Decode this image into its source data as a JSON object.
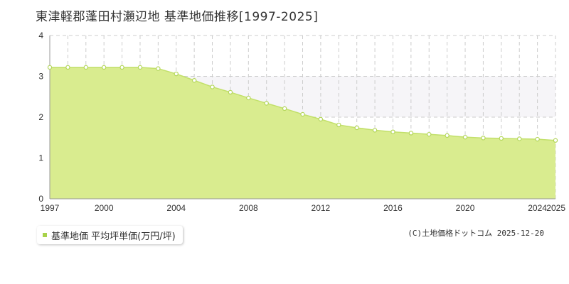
{
  "title": "東津軽郡蓬田村瀬辺地 基準地価推移[1997-2025]",
  "colors": {
    "area_fill": "#d9ec8f",
    "line": "#c2e06a",
    "point_fill": "#ffffff",
    "point_stroke": "#b3d65a",
    "grid": "#cccccc",
    "band": "#f6f5f8",
    "legend_marker": "#a8d24a"
  },
  "legend": {
    "label": "基準地価 平均坪単価(万円/坪)"
  },
  "copyright": "(C)土地価格ドットコム 2025-12-20",
  "chart_data": {
    "type": "area",
    "title": "東津軽郡蓬田村瀬辺地 基準地価推移[1997-2025]",
    "xlabel": "",
    "ylabel": "",
    "xlim": [
      1997,
      2025
    ],
    "ylim": [
      0,
      4
    ],
    "x_ticks": [
      "1997",
      "2000",
      "2004",
      "2008",
      "2012",
      "2016",
      "2020",
      "2024",
      "2025"
    ],
    "x_tick_values": [
      1997,
      2000,
      2004,
      2008,
      2012,
      2016,
      2020,
      2024,
      2025
    ],
    "y_ticks": [
      "0",
      "1",
      "2",
      "3",
      "4"
    ],
    "y_tick_values": [
      0,
      1,
      2,
      3,
      4
    ],
    "grid": true,
    "legend_position": "bottom-left",
    "series": [
      {
        "name": "基準地価 平均坪単価(万円/坪)",
        "x": [
          1997,
          1998,
          1999,
          2000,
          2001,
          2002,
          2003,
          2004,
          2005,
          2006,
          2007,
          2008,
          2009,
          2010,
          2011,
          2012,
          2013,
          2014,
          2015,
          2016,
          2017,
          2018,
          2019,
          2020,
          2021,
          2022,
          2023,
          2024,
          2025
        ],
        "values": [
          3.22,
          3.22,
          3.22,
          3.22,
          3.22,
          3.22,
          3.19,
          3.06,
          2.9,
          2.74,
          2.61,
          2.47,
          2.34,
          2.21,
          2.07,
          1.95,
          1.81,
          1.74,
          1.68,
          1.64,
          1.61,
          1.58,
          1.55,
          1.51,
          1.49,
          1.48,
          1.47,
          1.46,
          1.43
        ]
      }
    ]
  }
}
